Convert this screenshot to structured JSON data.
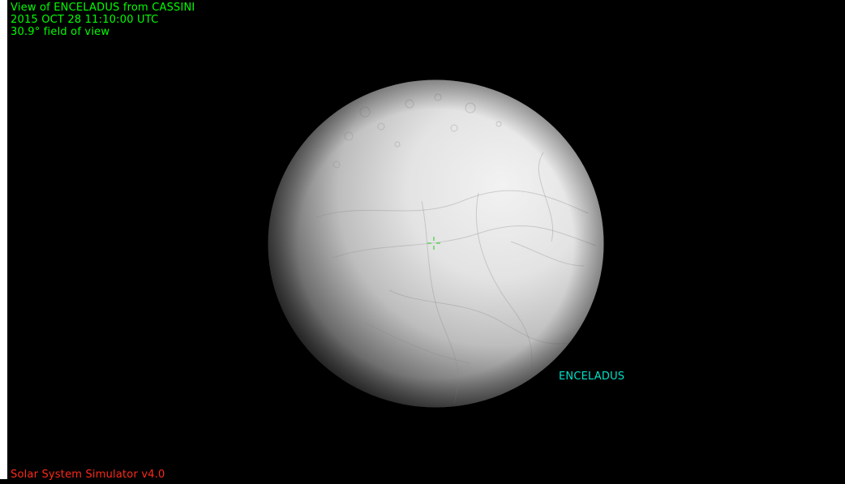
{
  "view": {
    "title_line": "View of ENCELADUS from CASSINI",
    "time_line": "2015 OCT 28 11:10:00 UTC",
    "fov_line": "30.9° field of view"
  },
  "target": {
    "label": "ENCELADUS"
  },
  "footer": {
    "app_name": "Solar System Simulator v4.0"
  },
  "colors": {
    "header_text": "#00ff00",
    "target_label": "#00e0c8",
    "footer_text": "#ff2a1a",
    "crosshair": "#3fd23f",
    "background": "#000000"
  }
}
